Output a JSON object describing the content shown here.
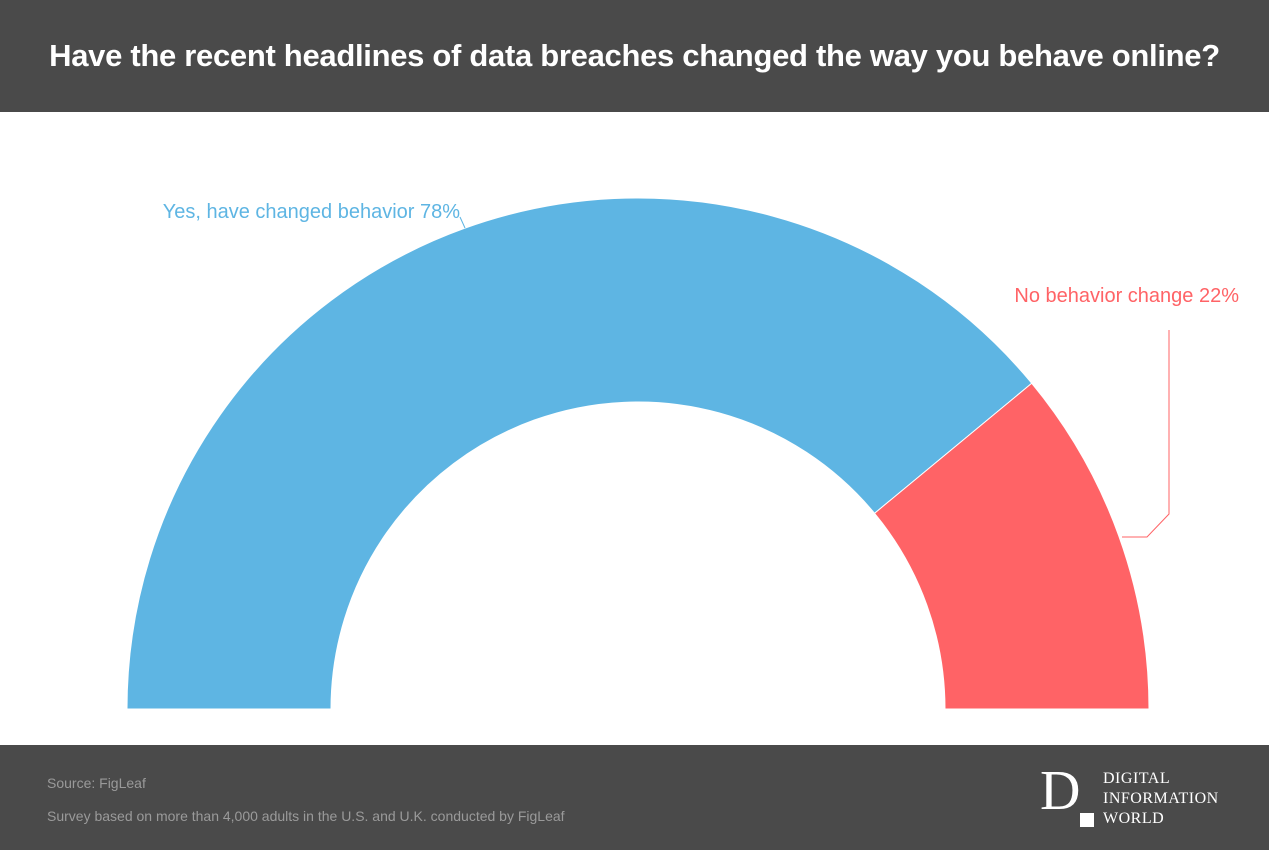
{
  "header": {
    "title": "Have the recent headlines of data breaches changed the way you behave online?"
  },
  "chart_data": {
    "type": "pie",
    "subtype": "semi-donut",
    "title": "Have the recent headlines of data breaches changed the way you behave online?",
    "categories": [
      "Yes, have changed behavior",
      "No behavior change"
    ],
    "values": [
      78,
      22
    ],
    "labels": [
      "Yes, have changed behavior 78%",
      "No behavior change 22%"
    ],
    "colors": [
      "#5eb5e3",
      "#ff6366"
    ],
    "unit": "%"
  },
  "footer": {
    "source": "Source: FigLeaf",
    "note": "Survey based on more than 4,000 adults in the U.S. and U.K. conducted by FigLeaf"
  },
  "brand": {
    "letter": "D",
    "lines": [
      "DIGITAL",
      "INFORMATION",
      "WORLD"
    ]
  }
}
